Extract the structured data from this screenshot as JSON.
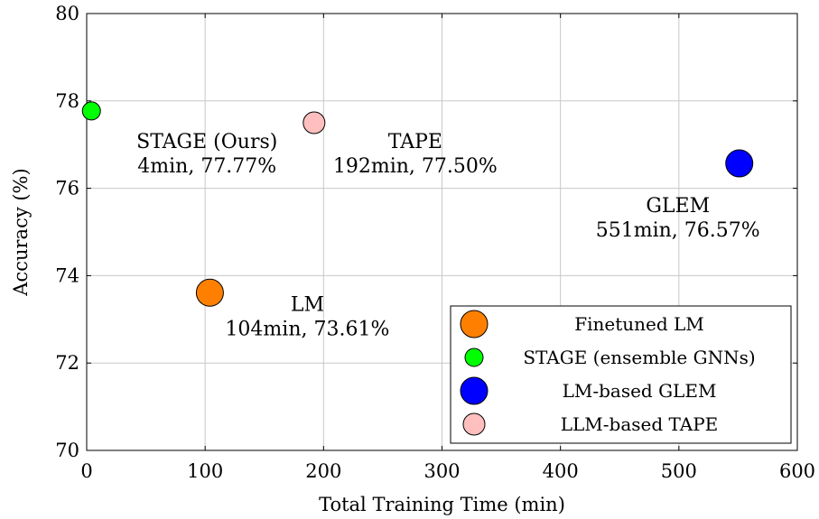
{
  "chart_data": {
    "type": "scatter",
    "xlabel": "Total Training Time (min)",
    "ylabel": "Accuracy (%)",
    "xlim": [
      0,
      600
    ],
    "ylim": [
      70,
      80
    ],
    "xticks": [
      "0",
      "100",
      "200",
      "300",
      "400",
      "500",
      "600"
    ],
    "yticks": [
      "70",
      "72",
      "74",
      "76",
      "78",
      "80"
    ],
    "grid": true,
    "legend_position": "bottom-right",
    "series": [
      {
        "name": "Finetuned LM",
        "color": "#ff8000",
        "size": "large",
        "x": 104,
        "y": 73.61,
        "label_line1": "LM",
        "label_line2": "104min, 73.61%"
      },
      {
        "name": "STAGE (ensemble GNNs)",
        "color": "#00ff00",
        "size": "small",
        "x": 4,
        "y": 77.77,
        "label_line1": "STAGE (Ours)",
        "label_line2": "4min, 77.77%"
      },
      {
        "name": "LM-based GLEM",
        "color": "#0000ff",
        "size": "large",
        "x": 551,
        "y": 76.57,
        "label_line1": "GLEM",
        "label_line2": "551min, 76.57%"
      },
      {
        "name": "LLM-based TAPE",
        "color": "#ffbfbf",
        "size": "medium",
        "x": 192,
        "y": 77.5,
        "label_line1": "TAPE",
        "label_line2": "192min, 77.50%"
      }
    ]
  }
}
